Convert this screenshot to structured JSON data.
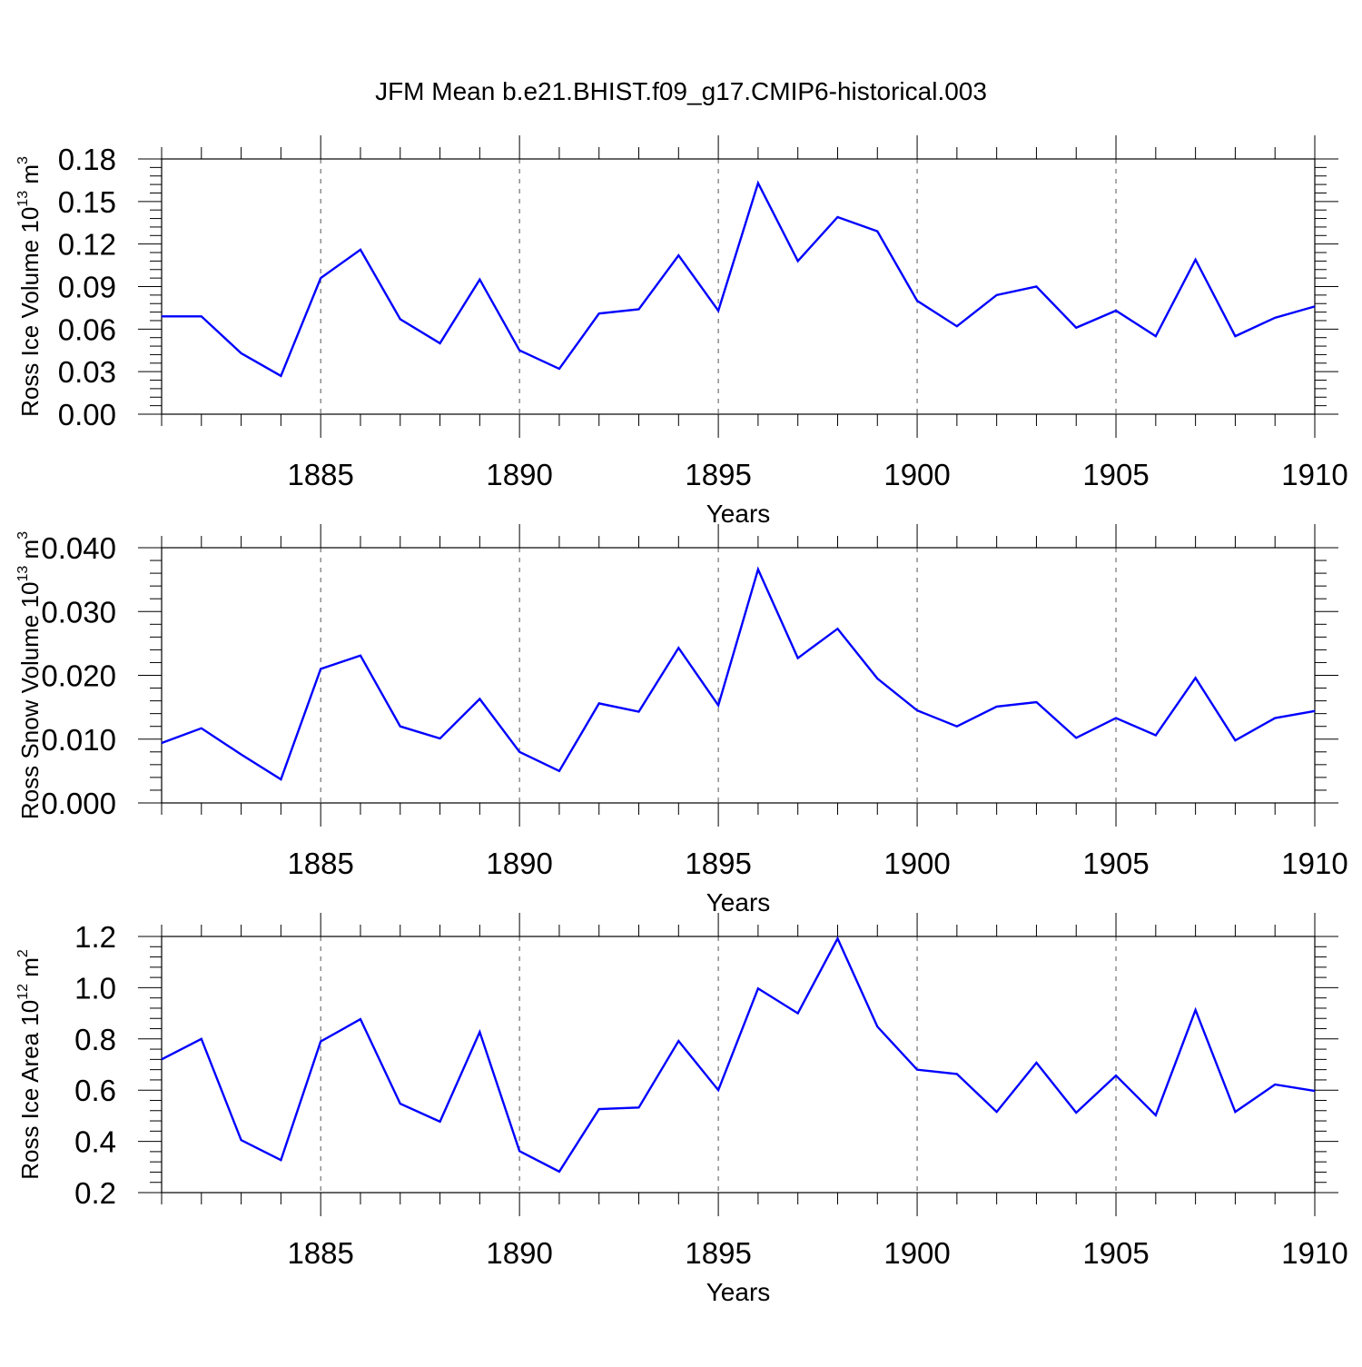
{
  "title": "JFM Mean b.e21.BHIST.f09_g17.CMIP6-historical.003",
  "colors": {
    "line": "#0000ff",
    "axis": "#000000",
    "grid": "#555555"
  },
  "chart_data": [
    {
      "type": "line",
      "ylabel": "Ross Ice Volume 10",
      "ylabel_exp": "13",
      "ylabel_unit": " m",
      "ylabel_unit_exp": "3",
      "xlabel": "Years",
      "xlim": [
        1881,
        1910
      ],
      "xticks": [
        1885,
        1890,
        1895,
        1900,
        1905,
        1910
      ],
      "ylim": [
        0.0,
        0.18
      ],
      "yticks": [
        "0.00",
        "0.03",
        "0.06",
        "0.09",
        "0.12",
        "0.15",
        "0.18"
      ],
      "ytick_values": [
        0.0,
        0.03,
        0.06,
        0.09,
        0.12,
        0.15,
        0.18
      ],
      "x": [
        1881,
        1882,
        1883,
        1884,
        1885,
        1886,
        1887,
        1888,
        1889,
        1890,
        1891,
        1892,
        1893,
        1894,
        1895,
        1896,
        1897,
        1898,
        1899,
        1900,
        1901,
        1902,
        1903,
        1904,
        1905,
        1906,
        1907,
        1908,
        1909,
        1910
      ],
      "values": [
        0.069,
        0.069,
        0.043,
        0.027,
        0.096,
        0.116,
        0.067,
        0.05,
        0.095,
        0.045,
        0.032,
        0.071,
        0.074,
        0.112,
        0.073,
        0.163,
        0.108,
        0.139,
        0.129,
        0.08,
        0.062,
        0.084,
        0.09,
        0.061,
        0.073,
        0.055,
        0.109,
        0.055,
        0.068,
        0.076
      ]
    },
    {
      "type": "line",
      "ylabel": "Ross Snow Volume 10",
      "ylabel_exp": "13",
      "ylabel_unit": " m",
      "ylabel_unit_exp": "3",
      "xlabel": "Years",
      "xlim": [
        1881,
        1910
      ],
      "xticks": [
        1885,
        1890,
        1895,
        1900,
        1905,
        1910
      ],
      "ylim": [
        0.0,
        0.04
      ],
      "yticks": [
        "0.000",
        "0.010",
        "0.020",
        "0.030",
        "0.040"
      ],
      "ytick_values": [
        0.0,
        0.01,
        0.02,
        0.03,
        0.04
      ],
      "x": [
        1881,
        1882,
        1883,
        1884,
        1885,
        1886,
        1887,
        1888,
        1889,
        1890,
        1891,
        1892,
        1893,
        1894,
        1895,
        1896,
        1897,
        1898,
        1899,
        1900,
        1901,
        1902,
        1903,
        1904,
        1905,
        1906,
        1907,
        1908,
        1909,
        1910
      ],
      "values": [
        0.0094,
        0.0117,
        0.0076,
        0.0037,
        0.021,
        0.0231,
        0.012,
        0.0101,
        0.0163,
        0.008,
        0.005,
        0.0156,
        0.0143,
        0.0243,
        0.0153,
        0.0366,
        0.0227,
        0.0273,
        0.0195,
        0.0145,
        0.012,
        0.0151,
        0.0158,
        0.0102,
        0.0133,
        0.0106,
        0.0196,
        0.0098,
        0.0133,
        0.0144
      ]
    },
    {
      "type": "line",
      "ylabel": "Ross Ice Area 10",
      "ylabel_exp": "12",
      "ylabel_unit": " m",
      "ylabel_unit_exp": "2",
      "xlabel": "Years",
      "xlim": [
        1881,
        1910
      ],
      "xticks": [
        1885,
        1890,
        1895,
        1900,
        1905,
        1910
      ],
      "ylim": [
        0.2,
        1.2
      ],
      "yticks": [
        "0.2",
        "0.4",
        "0.6",
        "0.8",
        "1.0",
        "1.2"
      ],
      "ytick_values": [
        0.2,
        0.4,
        0.6,
        0.8,
        1.0,
        1.2
      ],
      "x": [
        1881,
        1882,
        1883,
        1884,
        1885,
        1886,
        1887,
        1888,
        1889,
        1890,
        1891,
        1892,
        1893,
        1894,
        1895,
        1896,
        1897,
        1898,
        1899,
        1900,
        1901,
        1902,
        1903,
        1904,
        1905,
        1906,
        1907,
        1908,
        1909,
        1910
      ],
      "values": [
        0.72,
        0.8,
        0.405,
        0.327,
        0.79,
        0.877,
        0.547,
        0.477,
        0.827,
        0.362,
        0.282,
        0.526,
        0.532,
        0.792,
        0.6,
        0.997,
        0.9,
        1.192,
        0.848,
        0.68,
        0.663,
        0.515,
        0.707,
        0.512,
        0.657,
        0.502,
        0.913,
        0.515,
        0.622,
        0.597
      ]
    }
  ]
}
